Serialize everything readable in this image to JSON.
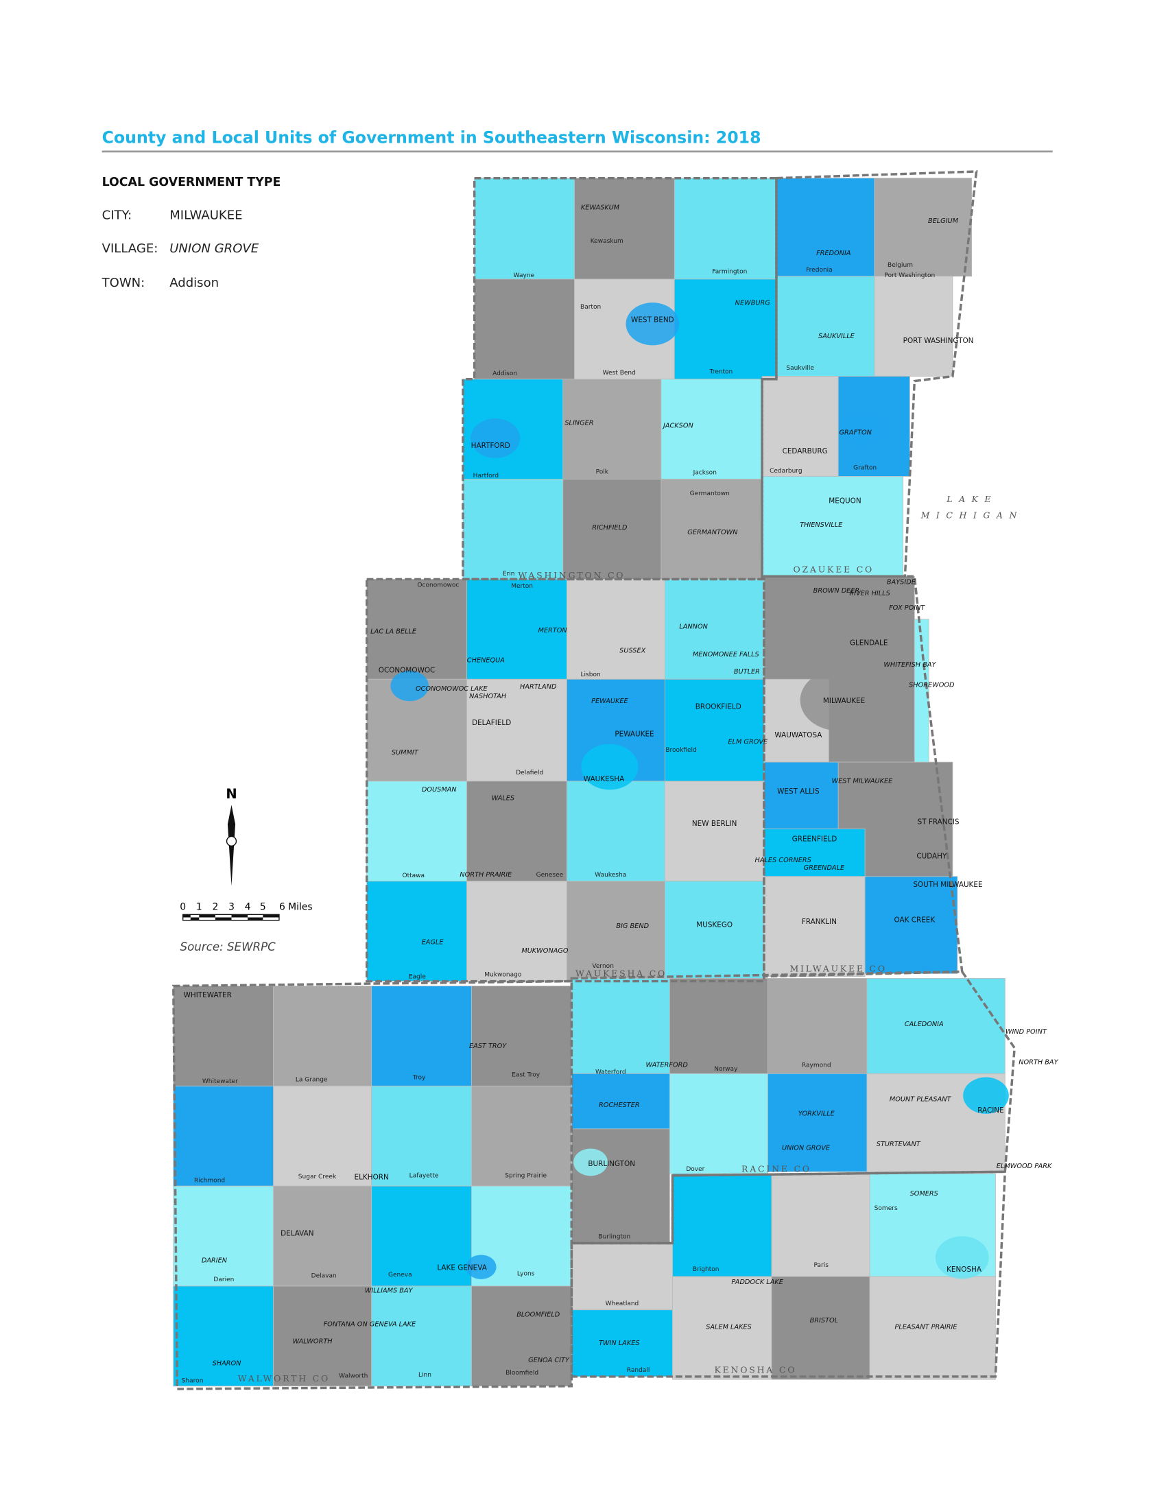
{
  "header": {
    "title": "County and Local Units of Government in Southeastern Wisconsin: 2018"
  },
  "legend": {
    "heading": "LOCAL GOVERNMENT TYPE",
    "items": [
      {
        "type": "CITY:",
        "example": "MILWAUKEE"
      },
      {
        "type": "VILLAGE:",
        "example": "UNION GROVE"
      },
      {
        "type": "TOWN:",
        "example": "Addison"
      }
    ]
  },
  "scale": {
    "north": "N",
    "ticks": [
      "0",
      "1",
      "2",
      "3",
      "4",
      "5",
      "6 Miles"
    ],
    "source": "Source: SEWRPC"
  },
  "lake": [
    "L A K E",
    "M I C H I G A N"
  ],
  "counties": [
    "WASHINGTON CO",
    "OZAUKEE CO",
    "WAUKESHA CO",
    "MILWAUKEE CO",
    "WALWORTH CO",
    "RACINE CO",
    "KENOSHA CO"
  ],
  "places": [
    "KEWASKUM",
    "Kewaskum",
    "Wayne",
    "Farmington",
    "Barton",
    "WEST BEND",
    "NEWBURG",
    "West Bend",
    "Trenton",
    "Addison",
    "HARTFORD",
    "SLINGER",
    "JACKSON",
    "Hartford",
    "Polk",
    "Jackson",
    "Germantown",
    "RICHFIELD",
    "GERMANTOWN",
    "Erin",
    "FREDONIA",
    "Fredonia",
    "BELGIUM",
    "Belgium",
    "Port Washington",
    "SAUKVILLE",
    "PORT WASHINGTON",
    "Saukville",
    "CEDARBURG",
    "GRAFTON",
    "Grafton",
    "Cedarburg",
    "MEQUON",
    "THIENSVILLE",
    "Oconomowoc",
    "Merton",
    "LAC LA BELLE",
    "MERTON",
    "LANNON",
    "CHENEQUA",
    "SUSSEX",
    "MENOMONEE FALLS",
    "BUTLER",
    "OCONOMOWOC",
    "OCONOMOWOC LAKE",
    "HARTLAND",
    "NASHOTAH",
    "Lisbon",
    "PEWAUKEE",
    "BROOKFIELD",
    "DELAFIELD",
    "PEWAUKEE",
    "ELM GROVE",
    "SUMMIT",
    "Brookfield",
    "Delafield",
    "WAUKESHA",
    "DOUSMAN",
    "WALES",
    "NEW BERLIN",
    "Ottawa",
    "NORTH PRAIRIE",
    "Genesee",
    "Waukesha",
    "BIG BEND",
    "MUSKEGO",
    "EAGLE",
    "MUKWONAGO",
    "Vernon",
    "Eagle",
    "Mukwonago",
    "BAYSIDE",
    "BROWN DEER",
    "RIVER HILLS",
    "FOX POINT",
    "GLENDALE",
    "WHITEFISH BAY",
    "SHOREWOOD",
    "MILWAUKEE",
    "WAUWATOSA",
    "WEST ALLIS",
    "WEST MILWAUKEE",
    "ST FRANCIS",
    "GREENFIELD",
    "CUDAHY",
    "HALES CORNERS",
    "GREENDALE",
    "SOUTH MILWAUKEE",
    "FRANKLIN",
    "OAK CREEK",
    "WHITEWATER",
    "Whitewater",
    "La Grange",
    "Troy",
    "EAST TROY",
    "East Troy",
    "Richmond",
    "Sugar Creek",
    "ELKHORN",
    "Lafayette",
    "Spring Prairie",
    "DELAVAN",
    "DARIEN",
    "Darien",
    "Delavan",
    "Geneva",
    "LAKE GENEVA",
    "Lyons",
    "WILLIAMS BAY",
    "FONTANA ON GENEVA LAKE",
    "WALWORTH",
    "BLOOMFIELD",
    "SHARON",
    "Sharon",
    "Walworth",
    "Linn",
    "Bloomfield",
    "GENOA CITY",
    "CALEDONIA",
    "WIND POINT",
    "NORTH BAY",
    "Waterford",
    "WATERFORD",
    "Norway",
    "Raymond",
    "ROCHESTER",
    "MOUNT PLEASANT",
    "RACINE",
    "YORKVILLE",
    "STURTEVANT",
    "BURLINGTON",
    "Dover",
    "UNION GROVE",
    "ELMWOOD PARK",
    "Burlington",
    "SOMERS",
    "Somers",
    "Paris",
    "Brighton",
    "PADDOCK LAKE",
    "KENOSHA",
    "Wheatland",
    "SALEM LAKES",
    "BRISTOL",
    "PLEASANT PRAIRIE",
    "TWIN LAKES",
    "Randall"
  ]
}
